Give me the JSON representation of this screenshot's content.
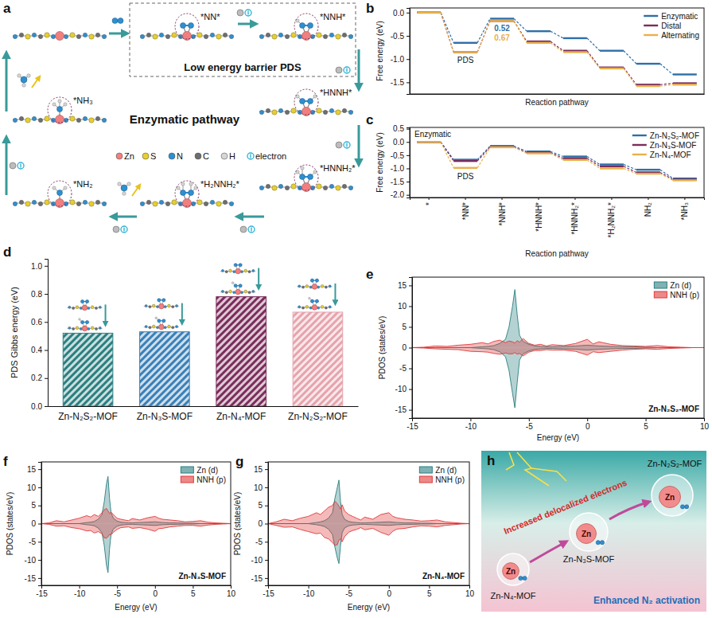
{
  "diagram_a": {
    "panel": "a",
    "title": "Enzymatic pathway",
    "box_label": "Low energy barrier PDS",
    "states": [
      "*NN*",
      "*NNH*",
      "*HNNH*",
      "*HNNH₂*",
      "*H₂NNH₂*",
      "*NH₂",
      "*NH₃"
    ],
    "atom_legend": [
      "Zn",
      "S",
      "N",
      "C",
      "H",
      "electron"
    ]
  },
  "chart_data": [
    {
      "panel": "b",
      "type": "line",
      "xlabel": "Reaction pathway",
      "ylabel": "Free energy (eV)",
      "categories": [
        null,
        null,
        null,
        null,
        null,
        null,
        null,
        null
      ],
      "tick_labels": "y",
      "ylim": [
        -1.75,
        0.1
      ],
      "yticks": [
        {
          "value": 0,
          "label": "0.0"
        },
        -0.5,
        {
          "value": -1,
          "label": "-1.0"
        },
        -1.5
      ],
      "legend": "top-right",
      "series": [
        {
          "name": "Enzymatic",
          "color": "#2f6fa8",
          "values": [
            0,
            -0.65,
            -0.13,
            -0.4,
            -0.55,
            -0.82,
            -1.1,
            -1.33
          ]
        },
        {
          "name": "Distal",
          "color": "#7b2d5b",
          "values": [
            0,
            -0.85,
            -0.18,
            -0.62,
            -0.82,
            -1.18,
            -1.55,
            -1.52
          ]
        },
        {
          "name": "Alternating",
          "color": "#e8b04a",
          "values": [
            0,
            -0.85,
            -0.18,
            -0.65,
            -0.85,
            -1.2,
            -1.58,
            -1.55
          ]
        }
      ],
      "annotations": [
        "0.52",
        "0.67",
        "PDS"
      ]
    },
    {
      "panel": "c",
      "type": "line",
      "title": "Enzymatic",
      "xlabel": "Reaction pathway",
      "ylabel": "Free energy (eV)",
      "categories": [
        "*",
        "*NN*",
        "*NNH*",
        "*HNNH*",
        "*HNNH₂*",
        "*H₂NNH₂*",
        "NH₂",
        "*NH₃"
      ],
      "ylim": [
        -2.1,
        0.55
      ],
      "yticks": [
        {
          "value": -2,
          "label": "-2.0"
        },
        -1.5,
        {
          "value": -1,
          "label": "-1.0"
        },
        -0.5,
        {
          "value": 0,
          "label": "0.0"
        },
        0.5
      ],
      "legend": "top-right",
      "series": [
        {
          "name": "Zn-N₂S₂-MOF",
          "color": "#2f6fa8",
          "values": [
            0,
            -0.67,
            -0.15,
            -0.36,
            -0.55,
            -0.85,
            -1.05,
            -1.38
          ]
        },
        {
          "name": "Zn-N₃S-MOF",
          "color": "#7b2d5b",
          "values": [
            0,
            -0.72,
            -0.19,
            -0.4,
            -0.62,
            -0.92,
            -1.15,
            -1.42
          ]
        },
        {
          "name": "Zn-N₄-MOF",
          "color": "#e8b04a",
          "values": [
            0,
            -0.98,
            -0.2,
            -0.43,
            -0.68,
            -1.0,
            -1.2,
            -1.45
          ]
        }
      ],
      "annotations": [
        "PDS"
      ]
    },
    {
      "panel": "d",
      "type": "bar",
      "ylabel": "PDS Gibbs energy (eV)",
      "categories": [
        "Zn-N₂S₂-MOF",
        "Zn-N₃S-MOF",
        "Zn-N₄-MOF",
        "Zn-N₂S₂-MOF"
      ],
      "values": [
        0.52,
        0.53,
        0.78,
        0.67
      ],
      "colors": [
        "#2a7f80",
        "#3a80b8",
        "#7b2d5b",
        "#e6a3ad"
      ],
      "ylim": [
        0,
        1.05
      ],
      "yticks": [
        {
          "value": 0,
          "label": "0.0"
        },
        0.2,
        0.4,
        0.6,
        0.8,
        {
          "value": 1,
          "label": "1.0"
        }
      ]
    },
    {
      "panel": "e",
      "type": "line",
      "xlabel": "Energy (eV)",
      "ylabel": "PDOS (states/eV)",
      "x": [
        -15,
        -14,
        -13,
        -12,
        -11,
        -10,
        -9,
        -8.5,
        -8,
        -7.5,
        -7,
        -6.7,
        -6.4,
        -6.2,
        -6,
        -5.8,
        -5.5,
        -5,
        -4.5,
        -4,
        -3.5,
        -3,
        -2,
        -1,
        0,
        0.5,
        1,
        2,
        3,
        4,
        5,
        6,
        7,
        8,
        9,
        10
      ],
      "xlim": [
        -15,
        10
      ],
      "xticks": [
        -15,
        -10,
        -5,
        0,
        5,
        10
      ],
      "ylim": [
        -17,
        17
      ],
      "yticks": [
        -15,
        -10,
        -5,
        0,
        5,
        10,
        15
      ],
      "legend": "top-right",
      "series": [
        {
          "name": "Zn (d)",
          "color": "#2a7f80",
          "values": [
            0,
            0,
            0,
            0,
            0,
            0,
            0.2,
            0.3,
            0.5,
            1,
            2,
            5,
            10,
            14,
            8,
            3,
            1.5,
            0.8,
            0.4,
            0.3,
            0.2,
            0.2,
            0.3,
            0.4,
            0.6,
            0.5,
            0.4,
            0.3,
            0.2,
            0.2,
            0.1,
            0,
            0,
            0,
            0,
            0
          ],
          "values_down": [
            0,
            0,
            0,
            0,
            0,
            0,
            -0.2,
            -0.3,
            -0.5,
            -1,
            -2.2,
            -5.5,
            -11,
            -14.5,
            -8.5,
            -3,
            -1.5,
            -0.8,
            -0.4,
            -0.3,
            -0.2,
            -0.2,
            -0.3,
            -0.4,
            -0.6,
            -0.5,
            -0.4,
            -0.3,
            -0.2,
            -0.2,
            -0.1,
            0,
            0,
            0,
            0,
            0
          ]
        },
        {
          "name": "NNH (p)",
          "color": "#e03a3a",
          "values": [
            0,
            0.1,
            0.4,
            0.3,
            0.6,
            0.8,
            1.2,
            0.9,
            1.5,
            1.8,
            1.2,
            1.6,
            1.4,
            1.1,
            1.7,
            1.3,
            2.2,
            1,
            0.6,
            0.8,
            0.4,
            0.7,
            0.5,
            1,
            2,
            0.9,
            1.4,
            0.8,
            0.5,
            0.4,
            0.3,
            0.5,
            0.2,
            0.1,
            0,
            0
          ],
          "values_down": [
            0,
            -0.1,
            -0.3,
            -0.4,
            -0.5,
            -0.9,
            -1,
            -1.1,
            -1.4,
            -1.6,
            -1.3,
            -1.5,
            -1.5,
            -1.2,
            -1.6,
            -1.4,
            -2,
            -1.1,
            -0.7,
            -0.7,
            -0.5,
            -0.6,
            -0.6,
            -0.9,
            -1.8,
            -1,
            -1.2,
            -0.9,
            -0.6,
            -0.4,
            -0.3,
            -0.4,
            -0.2,
            -0.1,
            0,
            0
          ]
        }
      ],
      "annotations": [
        "Zn-N₂S₂-MOF"
      ]
    },
    {
      "panel": "f",
      "type": "line",
      "xlabel": "Energy (eV)",
      "ylabel": "PDOS (states/eV)",
      "x": [
        -15,
        -14,
        -13,
        -12,
        -11,
        -10,
        -9,
        -8.5,
        -8,
        -7.5,
        -7,
        -6.7,
        -6.4,
        -6.2,
        -6,
        -5.8,
        -5.5,
        -5,
        -4.5,
        -4,
        -3.5,
        -3,
        -2,
        -1,
        0,
        0.5,
        1,
        2,
        3,
        4,
        5,
        6,
        7,
        8,
        9,
        10
      ],
      "xlim": [
        -15,
        10
      ],
      "xticks": [
        -15,
        -10,
        -5,
        0,
        5,
        10
      ],
      "ylim": [
        -17,
        17
      ],
      "yticks": [
        -15,
        -10,
        -5,
        0,
        5,
        10,
        15
      ],
      "legend": "top-right",
      "series": [
        {
          "name": "Zn (d)",
          "color": "#2a7f80",
          "values": [
            0,
            0,
            0,
            0,
            0,
            0,
            0.3,
            0.4,
            0.6,
            1.2,
            2.5,
            6,
            11,
            13,
            7,
            3,
            1.5,
            0.7,
            0.4,
            0.3,
            0.2,
            0.2,
            0.3,
            0.4,
            0.5,
            0.4,
            0.3,
            0.2,
            0.2,
            0.1,
            0.1,
            0,
            0,
            0,
            0,
            0
          ],
          "values_down": [
            0,
            0,
            0,
            0,
            0,
            0,
            -0.3,
            -0.4,
            -0.6,
            -1.2,
            -2.5,
            -6,
            -11.5,
            -13.5,
            -7,
            -3,
            -1.5,
            -0.7,
            -0.4,
            -0.3,
            -0.2,
            -0.2,
            -0.3,
            -0.4,
            -0.5,
            -0.4,
            -0.3,
            -0.2,
            -0.2,
            -0.1,
            -0.1,
            0,
            0,
            0,
            0,
            0
          ]
        },
        {
          "name": "NNH (p)",
          "color": "#e03a3a",
          "values": [
            0,
            0.2,
            0.8,
            0.5,
            1,
            1.5,
            2.2,
            1.8,
            2.5,
            2,
            3,
            3.8,
            4.2,
            3.5,
            2.8,
            3.2,
            2.5,
            1.5,
            1.2,
            1,
            0.8,
            1.4,
            1,
            1.6,
            2,
            1.5,
            1.2,
            1,
            0.8,
            0.5,
            0.6,
            0.8,
            0.4,
            0.2,
            0.1,
            0
          ],
          "values_down": [
            0,
            -0.2,
            -0.7,
            -0.6,
            -1.1,
            -1.4,
            -2,
            -1.9,
            -2.6,
            -2.2,
            -2.8,
            -3.9,
            -4,
            -3.6,
            -3,
            -3.1,
            -2.4,
            -1.6,
            -1.1,
            -1,
            -0.9,
            -1.3,
            -1.1,
            -1.5,
            -2.1,
            -1.4,
            -1.3,
            -0.9,
            -0.7,
            -0.5,
            -0.5,
            -0.7,
            -0.4,
            -0.2,
            -0.1,
            0
          ]
        }
      ],
      "annotations": [
        "Zn-N₃S-MOF"
      ]
    },
    {
      "panel": "g",
      "type": "line",
      "xlabel": "Energy (eV)",
      "ylabel": "PDOS (states/eV)",
      "x": [
        -15,
        -14,
        -13,
        -12,
        -11,
        -10,
        -9,
        -8.5,
        -8,
        -7.5,
        -7,
        -6.7,
        -6.4,
        -6.2,
        -6,
        -5.8,
        -5.5,
        -5,
        -4.5,
        -4,
        -3.5,
        -3,
        -2,
        -1,
        0,
        0.5,
        1,
        2,
        3,
        4,
        5,
        6,
        7,
        8,
        9,
        10
      ],
      "xlim": [
        -15,
        10
      ],
      "xticks": [
        -15,
        -10,
        -5,
        0,
        5,
        10
      ],
      "ylim": [
        -17,
        17
      ],
      "yticks": [
        -15,
        -10,
        -5,
        0,
        5,
        10,
        15
      ],
      "legend": "top-right",
      "series": [
        {
          "name": "Zn (d)",
          "color": "#2a7f80",
          "values": [
            0,
            0,
            0,
            0,
            0,
            0,
            0.3,
            0.5,
            0.8,
            1.5,
            3,
            7,
            10,
            12,
            6,
            2.5,
            1.2,
            0.6,
            0.4,
            0.3,
            0.2,
            0.2,
            0.3,
            0.4,
            0.5,
            0.4,
            0.3,
            0.2,
            0.2,
            0.1,
            0.1,
            0,
            0,
            0,
            0,
            0
          ],
          "values_down": [
            0,
            0,
            0,
            0,
            0,
            0,
            -0.3,
            -0.5,
            -0.8,
            -1.5,
            -3,
            -6.5,
            -9.5,
            -11,
            -6,
            -2.5,
            -1.2,
            -0.6,
            -0.4,
            -0.3,
            -0.2,
            -0.2,
            -0.3,
            -0.4,
            -0.5,
            -0.4,
            -0.3,
            -0.2,
            -0.2,
            -0.1,
            -0.1,
            0,
            0,
            0,
            0,
            0
          ]
        },
        {
          "name": "NNH (p)",
          "color": "#e03a3a",
          "values": [
            0,
            0.5,
            1.2,
            0.8,
            1.5,
            2,
            3,
            2.5,
            3.5,
            4.5,
            5,
            6.2,
            5.5,
            4.8,
            4,
            5.2,
            3.5,
            2.5,
            2,
            1.5,
            1,
            1.8,
            1.2,
            2.5,
            3,
            2,
            1.6,
            1.2,
            1,
            0.7,
            0.8,
            1,
            0.5,
            0.3,
            0.1,
            0
          ],
          "values_down": [
            0,
            -0.5,
            -1,
            -0.9,
            -1.6,
            -2.2,
            -2.8,
            -2.6,
            -3.8,
            -4.2,
            -5.2,
            -6,
            -5.8,
            -4.5,
            -4.2,
            -5,
            -3.6,
            -2.4,
            -1.9,
            -1.6,
            -1.1,
            -1.7,
            -1.3,
            -2.4,
            -3.2,
            -2.1,
            -1.5,
            -1.3,
            -0.9,
            -0.6,
            -0.7,
            -0.9,
            -0.5,
            -0.3,
            -0.1,
            0
          ]
        }
      ],
      "annotations": [
        "Zn-N₄-MOF"
      ]
    }
  ],
  "diagram_h": {
    "panel": "h",
    "caption_top": "Increased delocalized electrons",
    "caption_bottom": "Enhanced N₂ activation",
    "mofs": [
      {
        "label": "Zn-N₄-MOF",
        "center": "Zn"
      },
      {
        "label": "Zn-N₃S-MOF",
        "center": "Zn"
      },
      {
        "label": "Zn-N₂S₂-MOF",
        "center": "Zn"
      }
    ]
  }
}
